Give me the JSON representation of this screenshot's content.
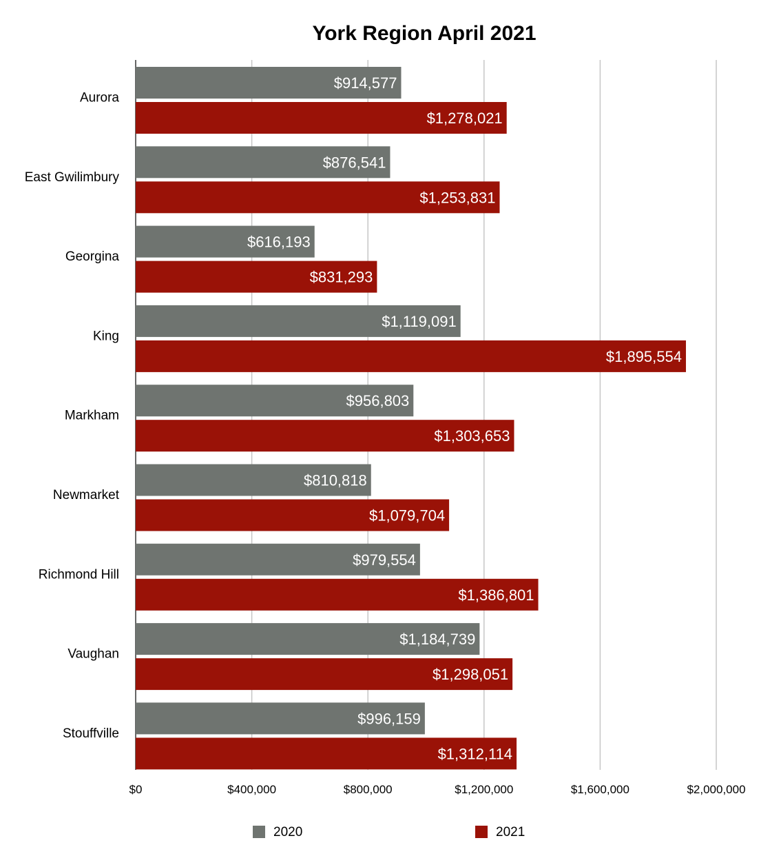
{
  "chart_data": {
    "type": "bar",
    "orientation": "horizontal",
    "title": "York Region April 2021",
    "xlabel": "",
    "ylabel": "",
    "categories": [
      "Aurora",
      "East Gwilimbury",
      "Georgina",
      "King",
      "Markham",
      "Newmarket",
      "Richmond Hill",
      "Vaughan",
      "Stouffville"
    ],
    "series": [
      {
        "name": "2020",
        "color": "#6f7470",
        "values": [
          914577,
          876541,
          616193,
          1119091,
          956803,
          810818,
          979554,
          1184739,
          996159
        ],
        "labels": [
          "$914,577",
          "$876,541",
          "$616,193",
          "$1,119,091",
          "$956,803",
          "$810,818",
          "$979,554",
          "$1,184,739",
          "$996,159"
        ]
      },
      {
        "name": "2021",
        "color": "#9a1207",
        "values": [
          1278021,
          1253831,
          831293,
          1895554,
          1303653,
          1079704,
          1386801,
          1298051,
          1312114
        ],
        "labels": [
          "$1,278,021",
          "$1,253,831",
          "$831,293",
          "$1,895,554",
          "$1,303,653",
          "$1,079,704",
          "$1,386,801",
          "$1,298,051",
          "$1,312,114"
        ]
      }
    ],
    "xlim": [
      0,
      2000000
    ],
    "xticks": [
      0,
      400000,
      800000,
      1200000,
      1600000,
      2000000
    ],
    "xtick_labels": [
      "$0",
      "$400,000",
      "$800,000",
      "$1,200,000",
      "$1,600,000",
      "$2,000,000"
    ],
    "grid": "vertical",
    "legend": "bottom"
  }
}
